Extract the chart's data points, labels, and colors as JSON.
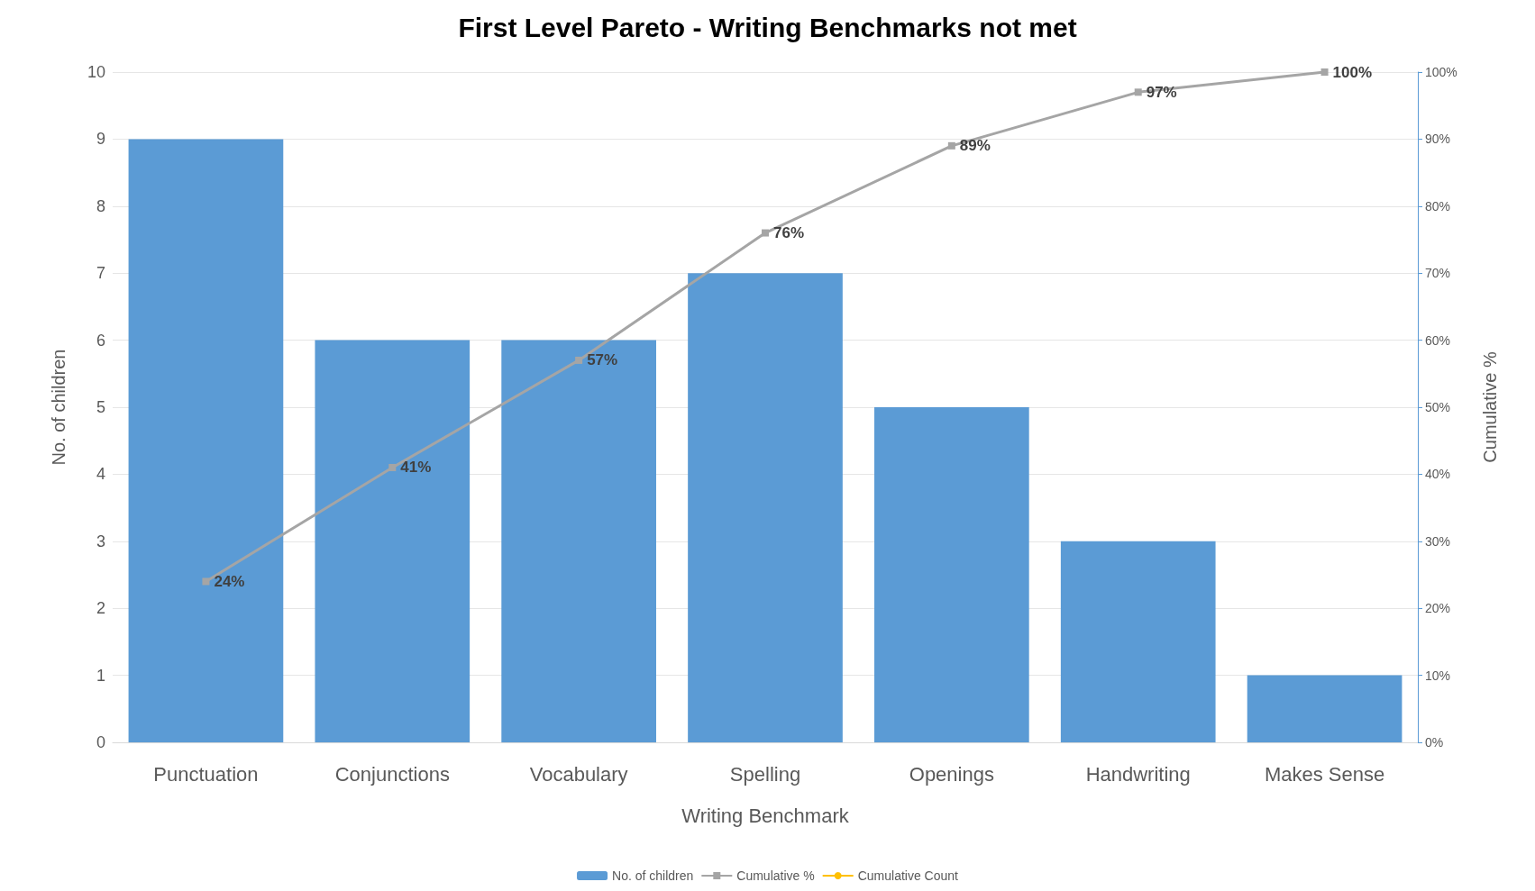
{
  "chart_data": {
    "type": "bar",
    "title": "First Level Pareto - Writing Benchmarks not met",
    "xlabel": "Writing Benchmark",
    "ylabel": "No. of children",
    "y2label": "Cumulative %",
    "categories": [
      "Punctuation",
      "Conjunctions",
      "Vocabulary",
      "Spelling",
      "Openings",
      "Handwriting",
      "Makes Sense"
    ],
    "series": [
      {
        "name": "No. of children",
        "color": "#5b9bd5",
        "values": [
          9,
          6,
          6,
          7,
          5,
          3,
          1
        ]
      },
      {
        "name": "Cumulative %",
        "type": "line",
        "axis": "y2",
        "marker": "square",
        "color": "#a5a5a5",
        "values": [
          24,
          41,
          57,
          76,
          89,
          97,
          100
        ],
        "value_labels": [
          "24%",
          "41%",
          "57%",
          "76%",
          "89%",
          "97%",
          "100%"
        ]
      },
      {
        "name": "Cumulative Count",
        "type": "line",
        "marker": "circle",
        "color": "#ffc000",
        "values": [
          null,
          null,
          null,
          null,
          null,
          null,
          null
        ]
      }
    ],
    "ylim": [
      0,
      10
    ],
    "yticks": [
      0,
      1,
      2,
      3,
      4,
      5,
      6,
      7,
      8,
      9,
      10
    ],
    "y2lim": [
      0,
      100
    ],
    "y2ticks": [
      {
        "value": 0,
        "label": "0%"
      },
      {
        "value": 10,
        "label": "10%"
      },
      {
        "value": 20,
        "label": "20%"
      },
      {
        "value": 30,
        "label": "30%"
      },
      {
        "value": 40,
        "label": "40%"
      },
      {
        "value": 50,
        "label": "50%"
      },
      {
        "value": 60,
        "label": "60%"
      },
      {
        "value": 70,
        "label": "70%"
      },
      {
        "value": 80,
        "label": "80%"
      },
      {
        "value": 90,
        "label": "90%"
      },
      {
        "value": 100,
        "label": "100%"
      }
    ],
    "grid": "y",
    "legend": "bottom"
  }
}
